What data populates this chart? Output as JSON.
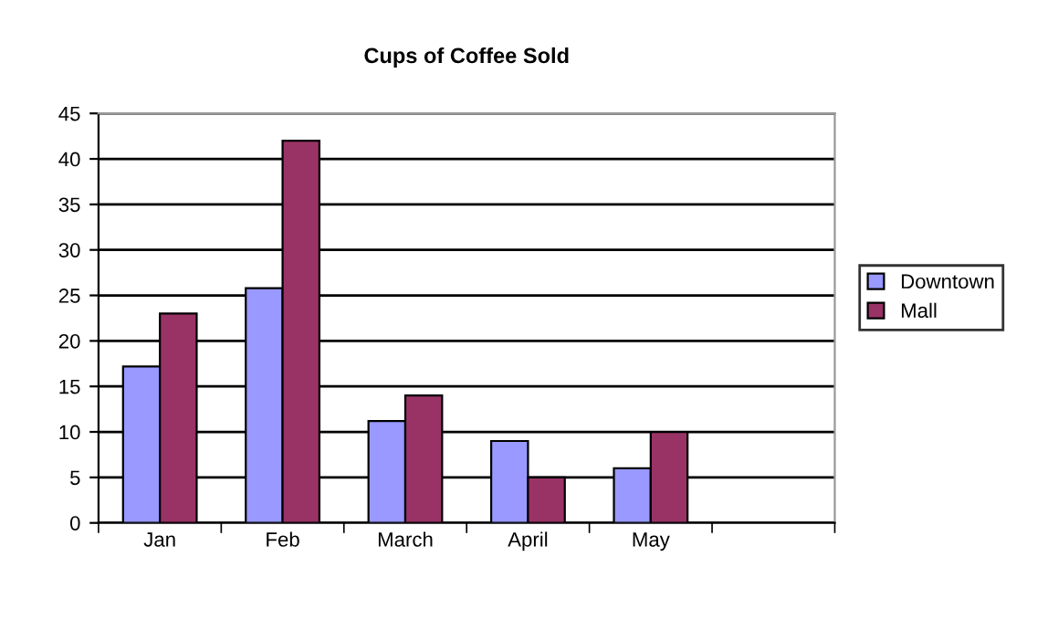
{
  "chart_data": {
    "type": "bar",
    "title": "Cups of Coffee Sold",
    "categories": [
      "Jan",
      "Feb",
      "March",
      "April",
      "May",
      null
    ],
    "series": [
      {
        "name": "Downtown",
        "color": "#9999ff",
        "values": [
          17.2,
          25.8,
          11.2,
          9,
          6,
          null
        ]
      },
      {
        "name": "Mall",
        "color": "#993366",
        "values": [
          23,
          42,
          14,
          5,
          10,
          null
        ]
      }
    ],
    "ylim": [
      0,
      45
    ],
    "yticks": [
      0,
      5,
      10,
      15,
      20,
      25,
      30,
      35,
      40,
      45
    ],
    "grid": "y",
    "legend": "right"
  }
}
